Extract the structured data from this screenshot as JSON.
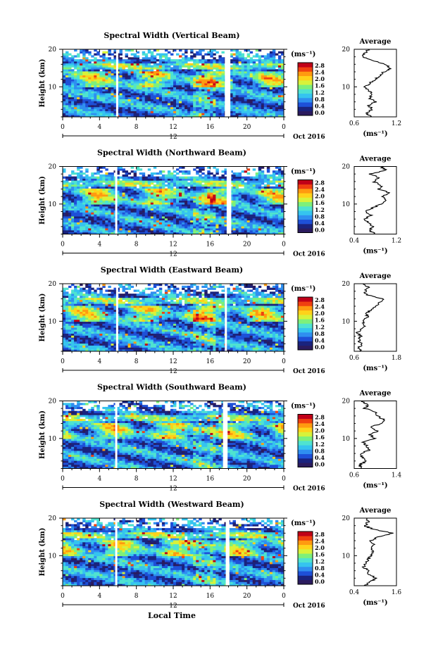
{
  "figure": {
    "xlabel": "Local Time",
    "date_label": "Oct 2016",
    "day_label": "12",
    "ylabel": "Height (km)",
    "avg_title": "Average",
    "unit": "(ms⁻¹)"
  },
  "colorscale": {
    "ticks": [
      "2.8",
      "2.4",
      "2.0",
      "1.6",
      "1.2",
      "0.8",
      "0.4",
      "0.0"
    ],
    "stops": [
      "#2b1b5e",
      "#1a237e",
      "#1e50d8",
      "#2f8ff0",
      "#35c4ef",
      "#4fe3d0",
      "#7ef07a",
      "#d8f23a",
      "#ffd21a",
      "#ff9a10",
      "#f04010",
      "#c00018"
    ]
  },
  "chart_data": [
    {
      "type": "heatmap",
      "title": "Spectral Width (Vertical Beam)",
      "xlabel": "Local Time",
      "ylabel": "Height (km)",
      "xlim": [
        0,
        24
      ],
      "ylim": [
        2,
        20
      ],
      "xticks": [
        "0",
        "4",
        "8",
        "12",
        "16",
        "20",
        "0"
      ],
      "yticks": [
        "10",
        "20"
      ],
      "gaps": [
        [
          5.8,
          6.0
        ],
        [
          17.6,
          18.2
        ]
      ],
      "seed": 11,
      "average": {
        "xlim": [
          0.6,
          1.2
        ],
        "xticks": [
          "0.6",
          "1.2"
        ],
        "profile": [
          [
            2,
            0.84
          ],
          [
            3,
            0.78
          ],
          [
            4,
            0.86
          ],
          [
            5,
            0.8
          ],
          [
            6,
            0.9
          ],
          [
            7,
            0.82
          ],
          [
            8,
            0.86
          ],
          [
            9,
            0.8
          ],
          [
            10,
            0.76
          ],
          [
            11,
            0.82
          ],
          [
            12,
            0.9
          ],
          [
            13,
            0.96
          ],
          [
            14,
            1.02
          ],
          [
            15,
            1.12
          ],
          [
            16,
            1.04
          ],
          [
            17,
            0.86
          ],
          [
            18,
            0.72
          ],
          [
            19,
            0.76
          ],
          [
            20,
            0.8
          ]
        ]
      }
    },
    {
      "type": "heatmap",
      "title": "Spectral Width (Northward Beam)",
      "xlabel": "Local Time",
      "ylabel": "Height (km)",
      "xlim": [
        0,
        24
      ],
      "ylim": [
        2,
        20
      ],
      "xticks": [
        "0",
        "4",
        "8",
        "12",
        "16",
        "20",
        "0"
      ],
      "yticks": [
        "10",
        "20"
      ],
      "gaps": [
        [
          5.7,
          5.9
        ],
        [
          17.8,
          18.3
        ]
      ],
      "seed": 23,
      "average": {
        "xlim": [
          0.4,
          1.2
        ],
        "xticks": [
          "0.4",
          "1.2"
        ],
        "profile": [
          [
            2,
            0.78
          ],
          [
            3,
            0.7
          ],
          [
            4,
            0.74
          ],
          [
            5,
            0.66
          ],
          [
            6,
            0.6
          ],
          [
            7,
            0.72
          ],
          [
            8,
            0.62
          ],
          [
            9,
            0.74
          ],
          [
            10,
            0.92
          ],
          [
            11,
            1.02
          ],
          [
            12,
            0.94
          ],
          [
            13,
            1.06
          ],
          [
            14,
            0.86
          ],
          [
            15,
            0.92
          ],
          [
            16,
            0.76
          ],
          [
            17,
            0.88
          ],
          [
            18,
            0.7
          ],
          [
            19,
            1.02
          ],
          [
            20,
            0.9
          ]
        ]
      }
    },
    {
      "type": "heatmap",
      "title": "Spectral Width (Eastward Beam)",
      "xlabel": "Local Time",
      "ylabel": "Height (km)",
      "xlim": [
        0,
        24
      ],
      "ylim": [
        2,
        20
      ],
      "xticks": [
        "0",
        "4",
        "8",
        "12",
        "16",
        "20",
        "0"
      ],
      "yticks": [
        "10",
        "20"
      ],
      "gaps": [
        [
          5.8,
          6.0
        ],
        [
          17.6,
          17.8
        ]
      ],
      "seed": 37,
      "average": {
        "xlim": [
          0.6,
          1.8
        ],
        "xticks": [
          "0.6",
          "1.8"
        ],
        "profile": [
          [
            2,
            0.82
          ],
          [
            3,
            0.74
          ],
          [
            4,
            0.8
          ],
          [
            5,
            0.72
          ],
          [
            6,
            0.78
          ],
          [
            7,
            0.7
          ],
          [
            8,
            0.8
          ],
          [
            9,
            0.9
          ],
          [
            10,
            0.84
          ],
          [
            11,
            0.98
          ],
          [
            12,
            0.94
          ],
          [
            13,
            1.06
          ],
          [
            14,
            1.24
          ],
          [
            15,
            1.32
          ],
          [
            16,
            1.42
          ],
          [
            17,
            0.96
          ],
          [
            18,
            0.9
          ],
          [
            19,
            1.0
          ],
          [
            20,
            0.86
          ]
        ]
      }
    },
    {
      "type": "heatmap",
      "title": "Spectral Width (Southward Beam)",
      "xlabel": "Local Time",
      "ylabel": "Height (km)",
      "xlim": [
        0,
        24
      ],
      "ylim": [
        2,
        20
      ],
      "xticks": [
        "0",
        "4",
        "8",
        "12",
        "16",
        "20",
        "0"
      ],
      "yticks": [
        "10",
        "20"
      ],
      "gaps": [
        [
          5.7,
          5.9
        ],
        [
          17.4,
          17.9
        ]
      ],
      "seed": 53,
      "average": {
        "xlim": [
          0.6,
          1.4
        ],
        "xticks": [
          "0.6",
          "1.4"
        ],
        "profile": [
          [
            2,
            0.74
          ],
          [
            3,
            0.7
          ],
          [
            4,
            0.84
          ],
          [
            5,
            0.76
          ],
          [
            6,
            0.72
          ],
          [
            7,
            0.9
          ],
          [
            8,
            0.84
          ],
          [
            9,
            0.78
          ],
          [
            10,
            1.0
          ],
          [
            11,
            0.9
          ],
          [
            12,
            1.04
          ],
          [
            13,
            0.92
          ],
          [
            14,
            1.1
          ],
          [
            15,
            1.16
          ],
          [
            16,
            1.04
          ],
          [
            17,
            1.0
          ],
          [
            18,
            0.8
          ],
          [
            19,
            0.86
          ],
          [
            20,
            0.74
          ]
        ]
      }
    },
    {
      "type": "heatmap",
      "title": "Spectral Width (Westward Beam)",
      "xlabel": "Local Time",
      "ylabel": "Height (km)",
      "xlim": [
        0,
        24
      ],
      "ylim": [
        2,
        20
      ],
      "xticks": [
        "0",
        "4",
        "8",
        "12",
        "16",
        "20",
        "0"
      ],
      "yticks": [
        "10",
        "20"
      ],
      "gaps": [
        [
          5.7,
          5.9
        ],
        [
          17.7,
          18.1
        ]
      ],
      "seed": 71,
      "average": {
        "xlim": [
          0.4,
          1.6
        ],
        "xticks": [
          "0.4",
          "1.6"
        ],
        "profile": [
          [
            2,
            0.7
          ],
          [
            3,
            0.86
          ],
          [
            4,
            1.0
          ],
          [
            5,
            0.84
          ],
          [
            6,
            0.78
          ],
          [
            7,
            0.68
          ],
          [
            8,
            0.72
          ],
          [
            9,
            0.8
          ],
          [
            10,
            0.86
          ],
          [
            11,
            0.92
          ],
          [
            12,
            0.9
          ],
          [
            13,
            0.98
          ],
          [
            14,
            0.88
          ],
          [
            15,
            1.06
          ],
          [
            16,
            1.5
          ],
          [
            17,
            0.94
          ],
          [
            18,
            0.7
          ],
          [
            19,
            0.8
          ],
          [
            20,
            0.74
          ]
        ]
      }
    }
  ]
}
